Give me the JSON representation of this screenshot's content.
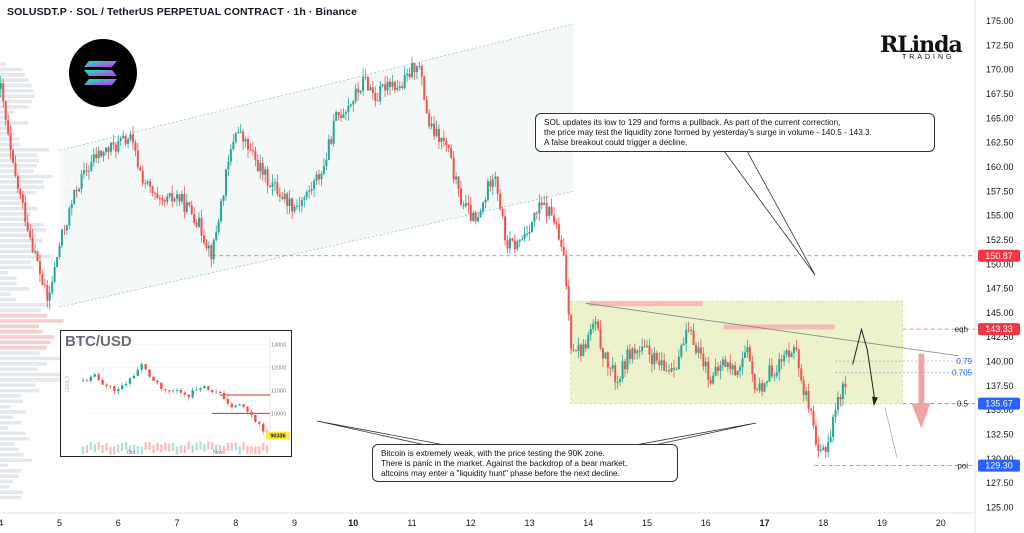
{
  "header": {
    "title": "SOLUSDT.P · SOL / TetherUS PERPETUAL CONTRACT · 1h · Binance"
  },
  "brand": {
    "name": "RLinda",
    "sub": "TRADING"
  },
  "colors": {
    "up": "#ef5350",
    "down": "#26a69a",
    "zone": "#e9f2c4",
    "zone_border": "#cfe09a",
    "resist": "#f7b9b9",
    "blue_tag": "#2962ff",
    "red_tag": "#f23645"
  },
  "chart_data": [
    {
      "type": "candlestick",
      "title": "SOLUSDT.P · SOL / TetherUS PERPETUAL CONTRACT · 1h · Binance",
      "x_ticks": [
        "4",
        "5",
        "6",
        "7",
        "8",
        "9",
        "10",
        "11",
        "12",
        "13",
        "14",
        "15",
        "16",
        "17",
        "18",
        "19",
        "20"
      ],
      "y_ticks": [
        "125.00",
        "127.50",
        "130.00",
        "132.50",
        "135.00",
        "137.50",
        "140.00",
        "142.50",
        "145.00",
        "147.50",
        "150.00",
        "152.50",
        "155.00",
        "157.50",
        "160.00",
        "162.50",
        "165.00",
        "167.50",
        "170.00",
        "172.50",
        "175.00"
      ],
      "ylim": [
        125,
        175
      ],
      "path": [
        [
          4.0,
          168
        ],
        [
          4.2,
          160
        ],
        [
          4.5,
          153
        ],
        [
          4.8,
          146
        ],
        [
          5.0,
          152
        ],
        [
          5.3,
          158
        ],
        [
          5.6,
          161
        ],
        [
          5.9,
          162
        ],
        [
          6.2,
          163
        ],
        [
          6.4,
          159
        ],
        [
          6.7,
          156
        ],
        [
          7.0,
          157
        ],
        [
          7.3,
          155
        ],
        [
          7.6,
          151
        ],
        [
          7.8,
          158
        ],
        [
          8.0,
          164
        ],
        [
          8.2,
          162
        ],
        [
          8.5,
          159
        ],
        [
          8.8,
          157
        ],
        [
          9.0,
          156
        ],
        [
          9.2,
          157
        ],
        [
          9.5,
          160
        ],
        [
          9.7,
          165
        ],
        [
          10.0,
          167
        ],
        [
          10.2,
          169
        ],
        [
          10.4,
          167
        ],
        [
          10.6,
          169
        ],
        [
          10.8,
          168
        ],
        [
          11.1,
          171
        ],
        [
          11.3,
          164
        ],
        [
          11.6,
          162
        ],
        [
          11.8,
          157
        ],
        [
          12.0,
          155
        ],
        [
          12.1,
          154
        ],
        [
          12.3,
          158
        ],
        [
          12.4,
          160
        ],
        [
          12.6,
          152
        ],
        [
          12.8,
          152
        ],
        [
          13.0,
          154
        ],
        [
          13.2,
          156
        ],
        [
          13.4,
          155
        ],
        [
          13.6,
          150
        ],
        [
          13.7,
          142
        ],
        [
          13.9,
          141
        ],
        [
          14.1,
          144
        ],
        [
          14.3,
          140
        ],
        [
          14.5,
          138
        ],
        [
          14.7,
          141
        ],
        [
          15.0,
          141
        ],
        [
          15.3,
          139
        ],
        [
          15.5,
          140
        ],
        [
          15.7,
          143
        ],
        [
          15.9,
          141
        ],
        [
          16.1,
          138
        ],
        [
          16.3,
          140
        ],
        [
          16.5,
          139
        ],
        [
          16.7,
          141
        ],
        [
          16.8,
          138
        ],
        [
          16.9,
          137
        ],
        [
          17.1,
          139
        ],
        [
          17.3,
          140
        ],
        [
          17.5,
          142
        ],
        [
          17.6,
          139
        ],
        [
          17.8,
          134
        ],
        [
          17.9,
          130
        ],
        [
          18.0,
          131
        ],
        [
          18.1,
          132
        ],
        [
          18.2,
          135
        ],
        [
          18.3,
          137
        ],
        [
          18.4,
          137.5
        ]
      ],
      "price_labels": [
        {
          "value": 150.87,
          "label": "150.87",
          "color": "red"
        },
        {
          "value": 143.33,
          "label": "143.33",
          "color": "red",
          "tag": "eqh"
        },
        {
          "value": 135.67,
          "label": "135.67",
          "color": "blue",
          "tag": "0.5"
        },
        {
          "value": 129.3,
          "label": "129.30",
          "color": "blue",
          "tag": "poi"
        }
      ],
      "fib_levels": [
        {
          "value": 140.05,
          "label": "0.79"
        },
        {
          "value": 138.85,
          "label": "0.705"
        }
      ],
      "liquidity_zone": {
        "from_x": 13.7,
        "to_x": 19.35,
        "y_low": 135.67,
        "y_high": 146.2
      },
      "channel": {
        "upper": [
          [
            5.0,
            161.7
          ],
          [
            13.75,
            174.7
          ]
        ],
        "lower": [
          [
            5.0,
            145.6
          ],
          [
            13.75,
            157.5
          ]
        ]
      },
      "annotations": [
        {
          "lines": [
            "SOL updates its low to 129 and forms a pullback. As part of the current correction,",
            "the price may test the liquidity zone formed by yesterday's surge in volume - 140.5 - 143.3.",
            "A false breakout could trigger a decline."
          ]
        },
        {
          "lines": [
            "Bitcoin is extremely weak, with the price testing the 90K zone.",
            "There is panic in the market. Against the backdrop of a bear market,",
            "altcoins may enter a \"liquidity hunt\" phase before the next decline."
          ]
        }
      ]
    },
    {
      "type": "candlestick",
      "title": "BTC/USD",
      "side_label": "DAILY",
      "x_ticks": [
        "Oct",
        "Nov"
      ],
      "y_ticks": [
        "13000",
        "12000",
        "11000",
        "10000",
        "9000"
      ],
      "ylim": [
        88000,
        131500
      ],
      "path": [
        [
          0,
          114000
        ],
        [
          3,
          116000
        ],
        [
          6,
          112000
        ],
        [
          9,
          110000
        ],
        [
          12,
          115000
        ],
        [
          15,
          121000
        ],
        [
          18,
          114000
        ],
        [
          21,
          109000
        ],
        [
          24,
          110000
        ],
        [
          27,
          108000
        ],
        [
          30,
          112000
        ],
        [
          33,
          110000
        ],
        [
          36,
          107000
        ],
        [
          38,
          102000
        ],
        [
          40,
          104000
        ],
        [
          42,
          101000
        ],
        [
          44,
          97000
        ],
        [
          46,
          92000
        ],
        [
          47,
          90336
        ]
      ],
      "current_label": "90336"
    }
  ]
}
